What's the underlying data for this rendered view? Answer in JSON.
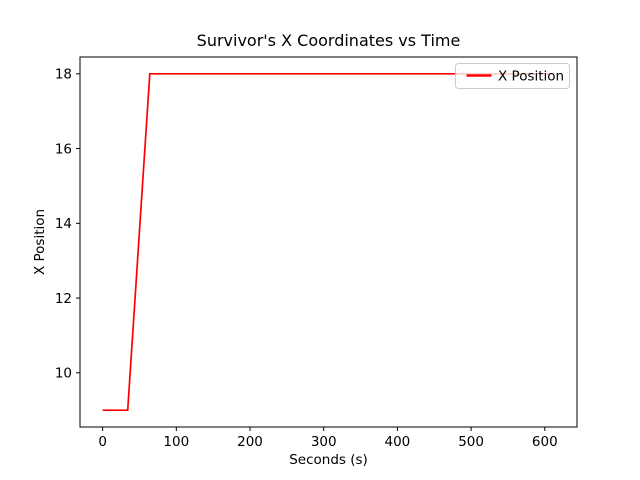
{
  "chart_data": {
    "type": "line",
    "title": "Survivor's X Coordinates vs Time",
    "xlabel": "Seconds (s)",
    "ylabel": "X Position",
    "xticks": [
      0,
      100,
      200,
      300,
      400,
      500,
      600
    ],
    "yticks": [
      10,
      12,
      14,
      16,
      18
    ],
    "xlim": [
      -30.7,
      643.7
    ],
    "ylim": [
      8.55,
      18.45
    ],
    "grid": false,
    "background": "#ffffff",
    "axis_color": "#000000",
    "legend": {
      "position": "upper right",
      "entries": [
        {
          "label": "X Position",
          "color": "#ff0000"
        }
      ]
    },
    "series": [
      {
        "name": "X Position",
        "color": "#ff0000",
        "points": [
          [
            0,
            9
          ],
          [
            34,
            9
          ],
          [
            64,
            18
          ],
          [
            613,
            18
          ]
        ]
      }
    ]
  }
}
